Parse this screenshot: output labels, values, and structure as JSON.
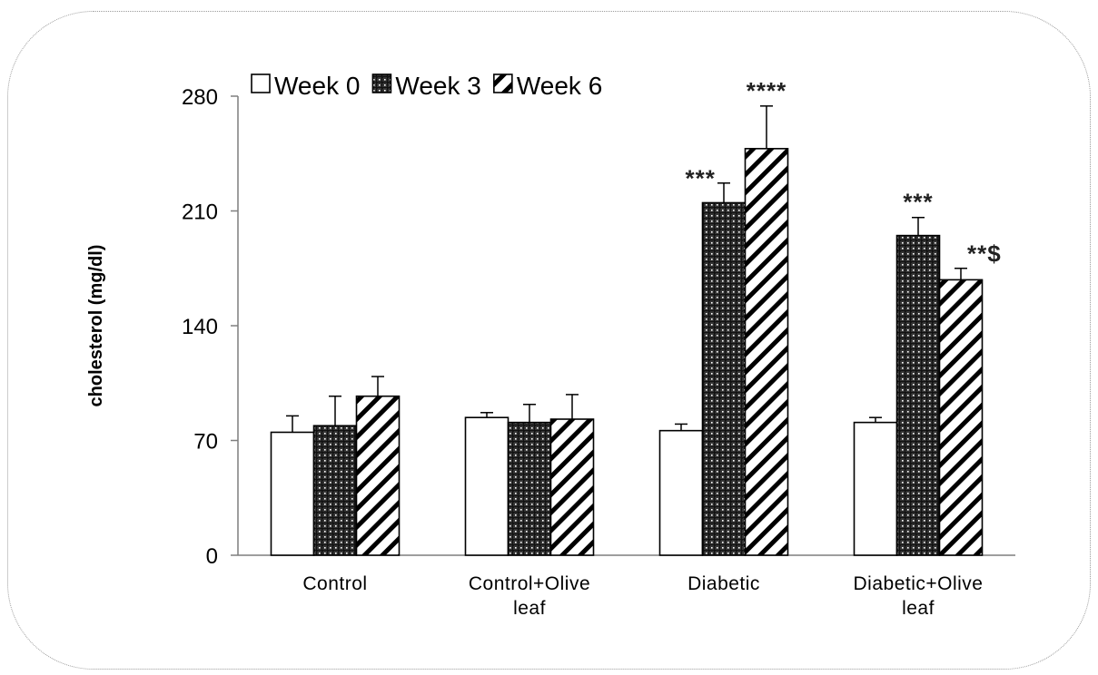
{
  "chart_data": {
    "type": "bar",
    "title": "",
    "xlabel": "",
    "ylabel": "cholesterol (mg/dl)",
    "ylim": [
      0,
      280
    ],
    "yticks": [
      0,
      70,
      140,
      210,
      280
    ],
    "categories": [
      [
        "Control"
      ],
      [
        "Control+Olive",
        "leaf"
      ],
      [
        "Diabetic"
      ],
      [
        "Diabetic+Olive",
        "leaf"
      ]
    ],
    "legend_position": "top",
    "series": [
      {
        "name": "Week 0",
        "pattern": "empty",
        "values": [
          75,
          84,
          76,
          81
        ],
        "errors": [
          10,
          3,
          4,
          3
        ]
      },
      {
        "name": "Week 3",
        "pattern": "grid",
        "values": [
          79,
          81,
          215,
          195
        ],
        "errors": [
          18,
          11,
          12,
          11
        ]
      },
      {
        "name": "Week 6",
        "pattern": "diagonal",
        "values": [
          97,
          83,
          248,
          168
        ],
        "errors": [
          12,
          15,
          26,
          7
        ]
      }
    ],
    "annotations": [
      {
        "category": 2,
        "series": 1,
        "text": "***"
      },
      {
        "category": 2,
        "series": 2,
        "text": "****"
      },
      {
        "category": 3,
        "series": 1,
        "text": "***"
      },
      {
        "category": 3,
        "series": 2,
        "text": "**$"
      }
    ],
    "colors": {
      "axis": "#7f7f7f",
      "bar_stroke": "#000000",
      "fill": "#ffffff",
      "pattern": "#000000"
    }
  }
}
